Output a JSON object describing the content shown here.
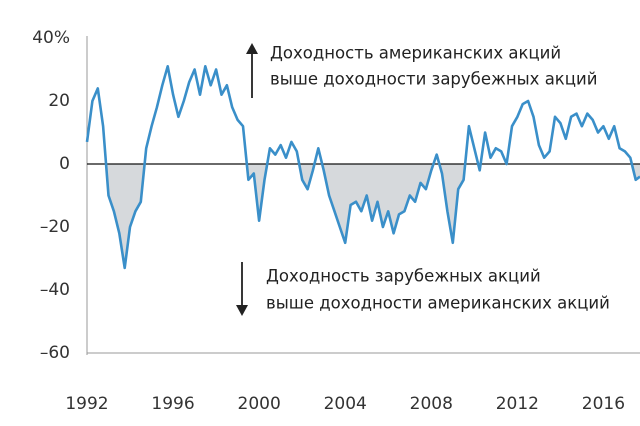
{
  "chart_data": {
    "type": "line",
    "x": [
      1992.0,
      1992.25,
      1992.5,
      1992.75,
      1993.0,
      1993.25,
      1993.5,
      1993.75,
      1994.0,
      1994.25,
      1994.5,
      1994.75,
      1995.0,
      1995.25,
      1995.5,
      1995.75,
      1996.0,
      1996.25,
      1996.5,
      1996.75,
      1997.0,
      1997.25,
      1997.5,
      1997.75,
      1998.0,
      1998.25,
      1998.5,
      1998.75,
      1999.0,
      1999.25,
      1999.5,
      1999.75,
      2000.0,
      2000.25,
      2000.5,
      2000.75,
      2001.0,
      2001.25,
      2001.5,
      2001.75,
      2002.0,
      2002.25,
      2002.5,
      2002.75,
      2003.0,
      2003.25,
      2003.5,
      2003.75,
      2004.0,
      2004.25,
      2004.5,
      2004.75,
      2005.0,
      2005.25,
      2005.5,
      2005.75,
      2006.0,
      2006.25,
      2006.5,
      2006.75,
      2007.0,
      2007.25,
      2007.5,
      2007.75,
      2008.0,
      2008.25,
      2008.5,
      2008.75,
      2009.0,
      2009.25,
      2009.5,
      2009.75,
      2010.0,
      2010.25,
      2010.5,
      2010.75,
      2011.0,
      2011.25,
      2011.5,
      2011.75,
      2012.0,
      2012.25,
      2012.5,
      2012.75,
      2013.0,
      2013.25,
      2013.5,
      2013.75,
      2014.0,
      2014.25,
      2014.5,
      2014.75,
      2015.0,
      2015.25,
      2015.5,
      2015.75,
      2016.0,
      2016.25,
      2016.5,
      2016.75,
      2017.0,
      2017.25,
      2017.5,
      2017.7
    ],
    "series": [
      {
        "color": "#3a8fc9",
        "values": [
          7,
          20,
          24,
          12,
          -10,
          -15,
          -22,
          -33,
          -20,
          -15,
          -12,
          5,
          12,
          18,
          25,
          31,
          22,
          15,
          20,
          26,
          30,
          22,
          31,
          25,
          30,
          22,
          25,
          18,
          14,
          12,
          -5,
          -3,
          -18,
          -5,
          5,
          3,
          6,
          2,
          7,
          4,
          -5,
          -8,
          -2,
          5,
          -2,
          -10,
          -15,
          -20,
          -25,
          -13,
          -12,
          -15,
          -10,
          -18,
          -12,
          -20,
          -15,
          -22,
          -16,
          -15,
          -10,
          -12,
          -6,
          -8,
          -2,
          3,
          -3,
          -15,
          -25,
          -8,
          -5,
          12,
          5,
          -2,
          10,
          2,
          5,
          4,
          0,
          12,
          15,
          19,
          20,
          15,
          6,
          2,
          4,
          15,
          13,
          8,
          15,
          16,
          12,
          16,
          14,
          10,
          12,
          8,
          12,
          5,
          4,
          2,
          -5,
          -4
        ]
      }
    ],
    "xlim": [
      1992,
      2017.7
    ],
    "xticks": [
      1992,
      1996,
      2000,
      2004,
      2008,
      2012,
      2016
    ],
    "ylim": [
      -60,
      40
    ],
    "yticks": [
      {
        "value": 40,
        "label": "40%"
      },
      20,
      0,
      {
        "value": -20,
        "label": "–20"
      },
      {
        "value": -40,
        "label": "–40"
      },
      {
        "value": -60,
        "label": "–60"
      }
    ],
    "negative_fill": "#d6d9dc",
    "annotations": [
      [
        "Доходность американских акций",
        "выше доходности зарубежных акций"
      ],
      [
        "Доходность зарубежных акций",
        "выше доходности американских акций"
      ]
    ]
  }
}
